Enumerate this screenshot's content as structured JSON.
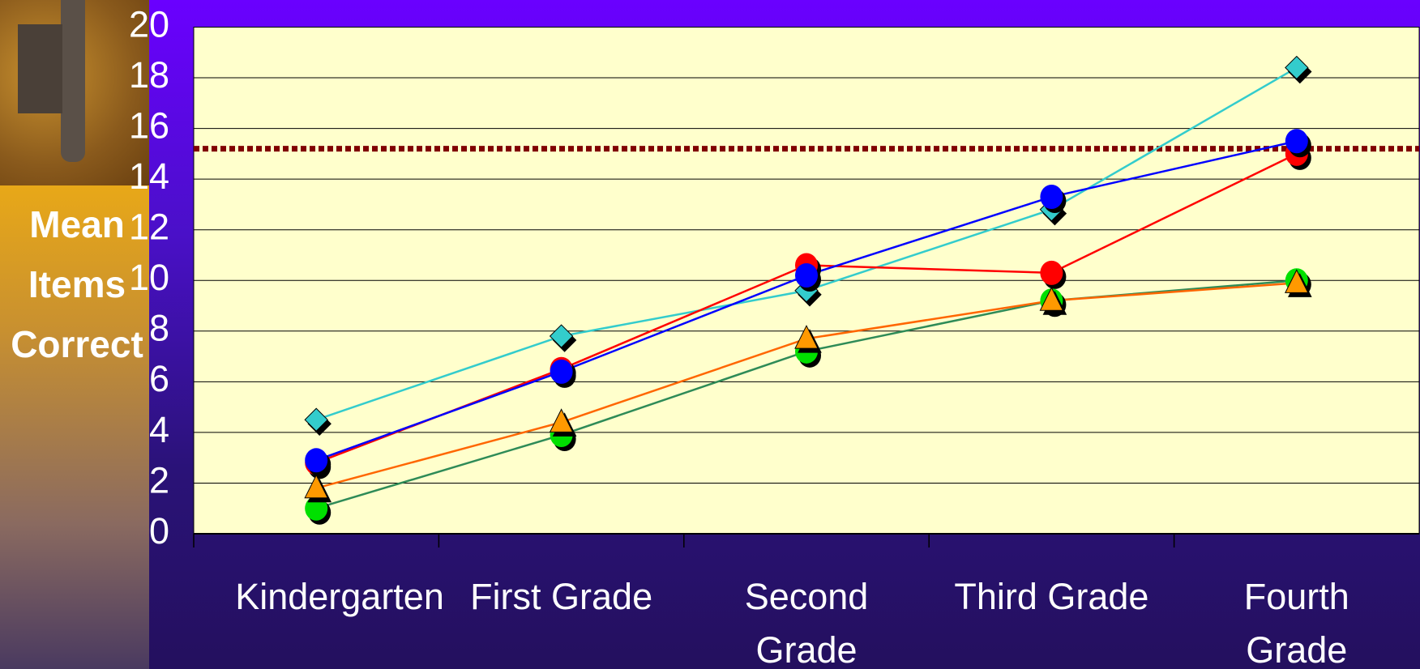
{
  "chart_data": {
    "type": "line",
    "y_label": "Mean Items Correct",
    "categories": [
      "Kindergarten",
      "First Grade",
      "Second Grade",
      "Third Grade",
      "Fourth Grade"
    ],
    "series": [
      {
        "color": "#33cccc",
        "marker": "diamond",
        "values": [
          4.5,
          7.8,
          9.6,
          12.8,
          18.4
        ]
      },
      {
        "color": "#ff0000",
        "marker": "circle",
        "values": [
          2.8,
          6.5,
          10.6,
          10.3,
          15.0
        ]
      },
      {
        "color": "#0000ff",
        "marker": "circle",
        "values": [
          2.9,
          6.4,
          10.2,
          13.3,
          15.5
        ]
      },
      {
        "color": "#2e8b57",
        "marker_color": "#00e000",
        "marker": "circle",
        "values": [
          1.0,
          3.9,
          7.2,
          9.2,
          10.0
        ]
      },
      {
        "color": "#ff6600",
        "marker_color": "#ff9900",
        "marker": "triangle",
        "values": [
          1.8,
          4.4,
          7.7,
          9.2,
          9.9
        ]
      }
    ],
    "reference_line": {
      "value": 15.2,
      "color": "#800000"
    },
    "ylim": [
      0,
      20
    ],
    "yticks": [
      0,
      2,
      4,
      6,
      8,
      10,
      12,
      14,
      16,
      18,
      20
    ],
    "grid": true
  }
}
